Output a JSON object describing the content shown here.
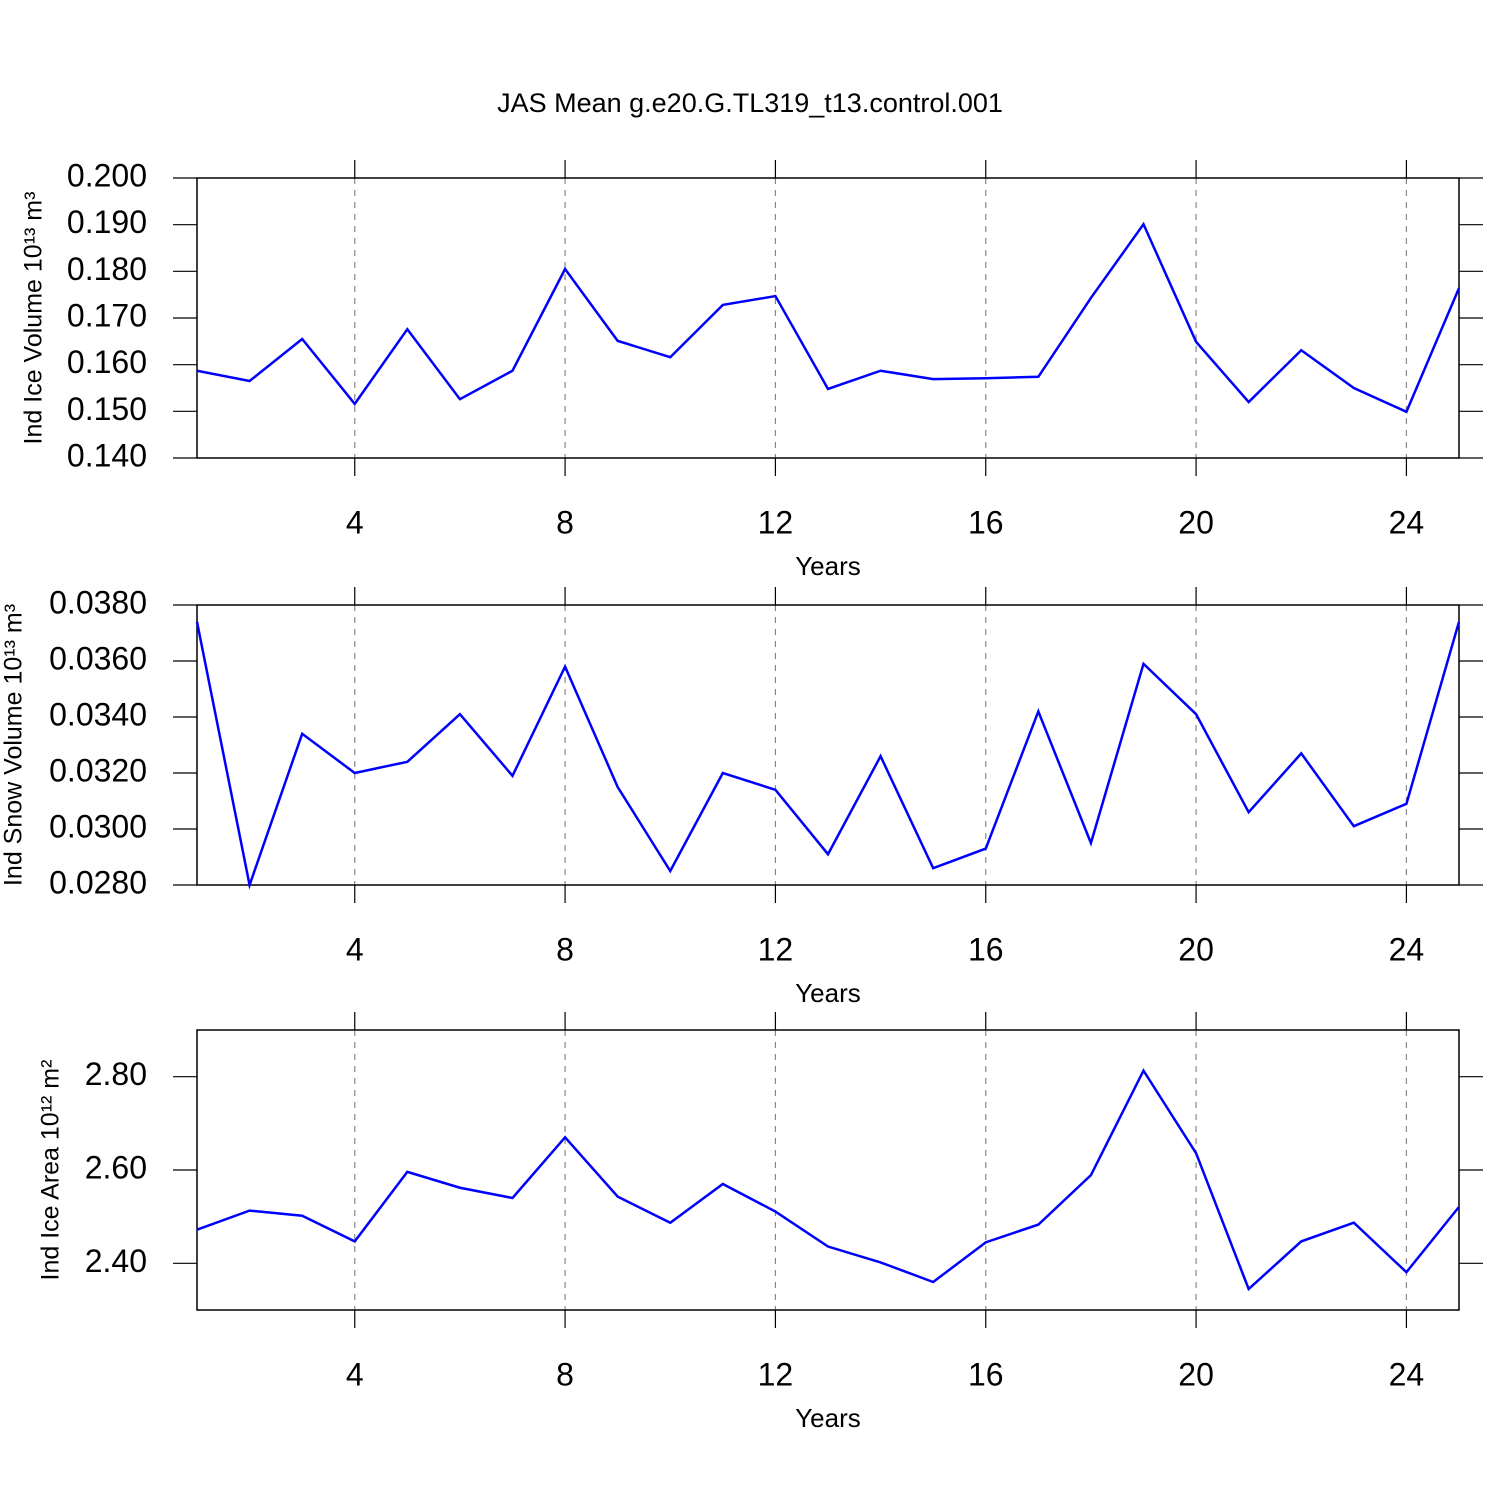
{
  "chart_data": [
    {
      "type": "line",
      "title": "JAS Mean g.e20.G.TL319_t13.control.001",
      "ylabel": "Ind Ice Volume 10¹³ m³",
      "xlabel": "Years",
      "x": [
        1,
        2,
        3,
        4,
        5,
        6,
        7,
        8,
        9,
        10,
        11,
        12,
        13,
        14,
        15,
        16,
        17,
        18,
        19,
        20,
        21,
        22,
        23,
        24,
        25
      ],
      "series": [
        {
          "color": "#0000ff",
          "values": [
            0.1587,
            0.1565,
            0.1655,
            0.1516,
            0.1676,
            0.1526,
            0.1587,
            0.1805,
            0.1651,
            0.1616,
            0.1728,
            0.1747,
            0.1548,
            0.1587,
            0.1569,
            0.1571,
            0.1574,
            0.1743,
            0.1901,
            0.1649,
            0.152,
            0.1631,
            0.155,
            0.1499,
            0.1764
          ]
        }
      ],
      "xlim": [
        1,
        25
      ],
      "xticks": [
        4,
        8,
        12,
        16,
        20,
        24
      ],
      "ylim": [
        0.14,
        0.2
      ],
      "yticks": [
        {
          "value": 0.14,
          "label": "0.140"
        },
        {
          "value": 0.15,
          "label": "0.150"
        },
        {
          "value": 0.16,
          "label": "0.160"
        },
        {
          "value": 0.17,
          "label": "0.170"
        },
        {
          "value": 0.18,
          "label": "0.180"
        },
        {
          "value": 0.19,
          "label": "0.190"
        },
        {
          "value": 0.2,
          "label": "0.200"
        }
      ],
      "xgrid": true
    },
    {
      "type": "line",
      "ylabel": "Ind Snow Volume 10¹³ m³",
      "xlabel": "Years",
      "x": [
        1,
        2,
        3,
        4,
        5,
        6,
        7,
        8,
        9,
        10,
        11,
        12,
        13,
        14,
        15,
        16,
        17,
        18,
        19,
        20,
        21,
        22,
        23,
        24,
        25
      ],
      "series": [
        {
          "color": "#0000ff",
          "values": [
            0.0374,
            0.028,
            0.0334,
            0.032,
            0.0324,
            0.0341,
            0.0319,
            0.0358,
            0.0315,
            0.0285,
            0.032,
            0.0314,
            0.0291,
            0.0326,
            0.0286,
            0.0293,
            0.0342,
            0.0295,
            0.0359,
            0.0341,
            0.0306,
            0.0327,
            0.0301,
            0.0309,
            0.0374
          ]
        }
      ],
      "xlim": [
        1,
        25
      ],
      "xticks": [
        4,
        8,
        12,
        16,
        20,
        24
      ],
      "ylim": [
        0.028,
        0.038
      ],
      "yticks": [
        {
          "value": 0.028,
          "label": "0.0280"
        },
        {
          "value": 0.03,
          "label": "0.0300"
        },
        {
          "value": 0.032,
          "label": "0.0320"
        },
        {
          "value": 0.034,
          "label": "0.0340"
        },
        {
          "value": 0.036,
          "label": "0.0360"
        },
        {
          "value": 0.038,
          "label": "0.0380"
        }
      ],
      "xgrid": true
    },
    {
      "type": "line",
      "ylabel": "Ind Ice Area 10¹² m²",
      "xlabel": "Years",
      "x": [
        1,
        2,
        3,
        4,
        5,
        6,
        7,
        8,
        9,
        10,
        11,
        12,
        13,
        14,
        15,
        16,
        17,
        18,
        19,
        20,
        21,
        22,
        23,
        24,
        25
      ],
      "series": [
        {
          "color": "#0000ff",
          "values": [
            2.472,
            2.513,
            2.502,
            2.447,
            2.596,
            2.562,
            2.54,
            2.67,
            2.543,
            2.487,
            2.57,
            2.511,
            2.436,
            2.402,
            2.36,
            2.445,
            2.483,
            2.589,
            2.813,
            2.636,
            2.345,
            2.447,
            2.487,
            2.381,
            2.521
          ]
        }
      ],
      "xlim": [
        1,
        25
      ],
      "xticks": [
        4,
        8,
        12,
        16,
        20,
        24
      ],
      "ylim": [
        2.3,
        2.9
      ],
      "yticks": [
        {
          "value": 2.4,
          "label": "2.40"
        },
        {
          "value": 2.6,
          "label": "2.60"
        },
        {
          "value": 2.8,
          "label": "2.80"
        }
      ],
      "xgrid": true
    }
  ]
}
